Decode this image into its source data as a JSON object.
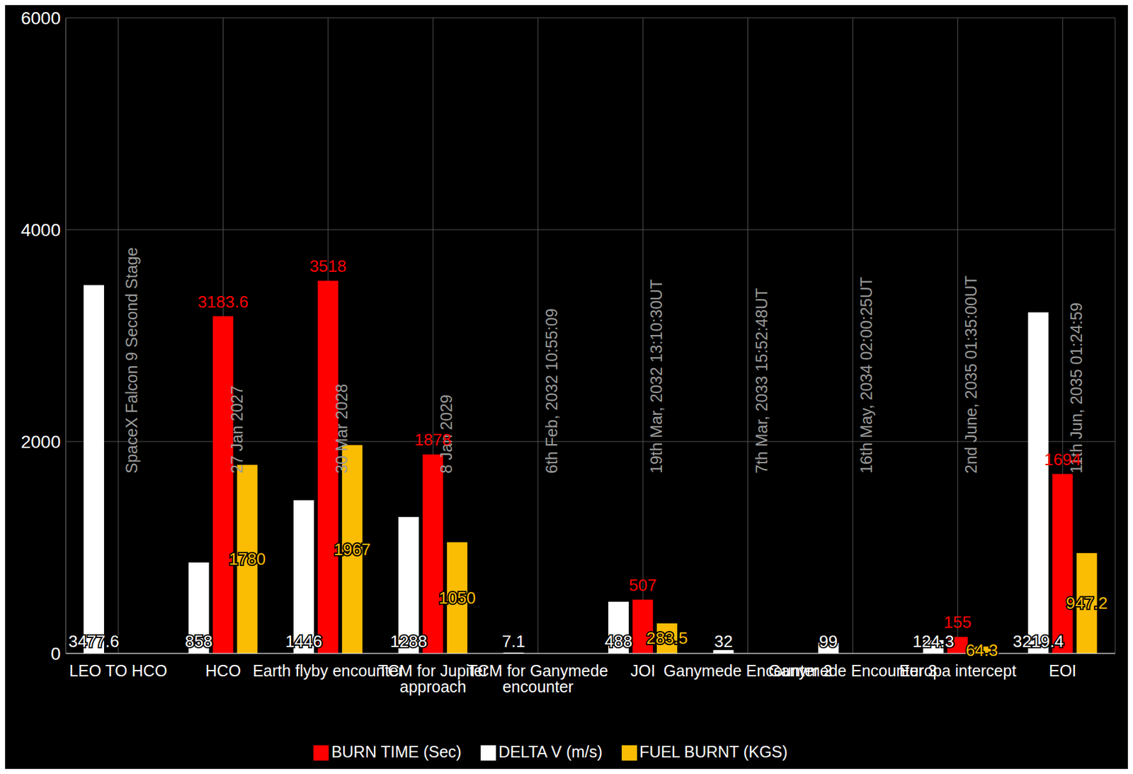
{
  "chart_data": {
    "type": "bar",
    "categories": [
      "LEO TO HCO",
      "HCO",
      "Earth flyby encounter",
      "TCM for Jupiter approach",
      "TCM for Ganymede encounter",
      "JOI",
      "Ganymede Encounter 2",
      "Ganymede Encounter 3",
      "Europa intercept",
      "EOI"
    ],
    "annotations": [
      "SpaceX Falcon 9 Second Stage",
      "27 Jan 2027",
      "30 Mar 2028",
      "8 Jan 2029",
      "6th Feb, 2032 10:55:09",
      "19th Mar, 2032 13:10:30UT",
      "7th Mar, 2033 15:52:48UT",
      "16th May, 2034 02:00:25UT",
      "2nd June, 2035 01:35:00UT",
      "11th Jun, 2035 01:24:59"
    ],
    "series": [
      {
        "name": "DELTA V (m/s)",
        "color": "#ffffff",
        "values": [
          3477.6,
          858,
          1446,
          1288,
          7.1,
          488,
          32,
          99,
          124.3,
          3219.4
        ]
      },
      {
        "name": "BURN TIME (Sec)",
        "color": "#ff0000",
        "values": [
          null,
          3183.6,
          3518,
          1878,
          null,
          507,
          null,
          null,
          155,
          1694
        ]
      },
      {
        "name": "FUEL BURNT (KGS)",
        "color": "#fbbc04",
        "values": [
          null,
          1780,
          1967,
          1050,
          null,
          283.5,
          null,
          null,
          64.3,
          947.2
        ]
      }
    ],
    "ylim": [
      0,
      6000
    ],
    "yticks": [
      0,
      2000,
      4000,
      6000
    ],
    "grid": true,
    "legend": "bottom",
    "data_labels": true
  }
}
